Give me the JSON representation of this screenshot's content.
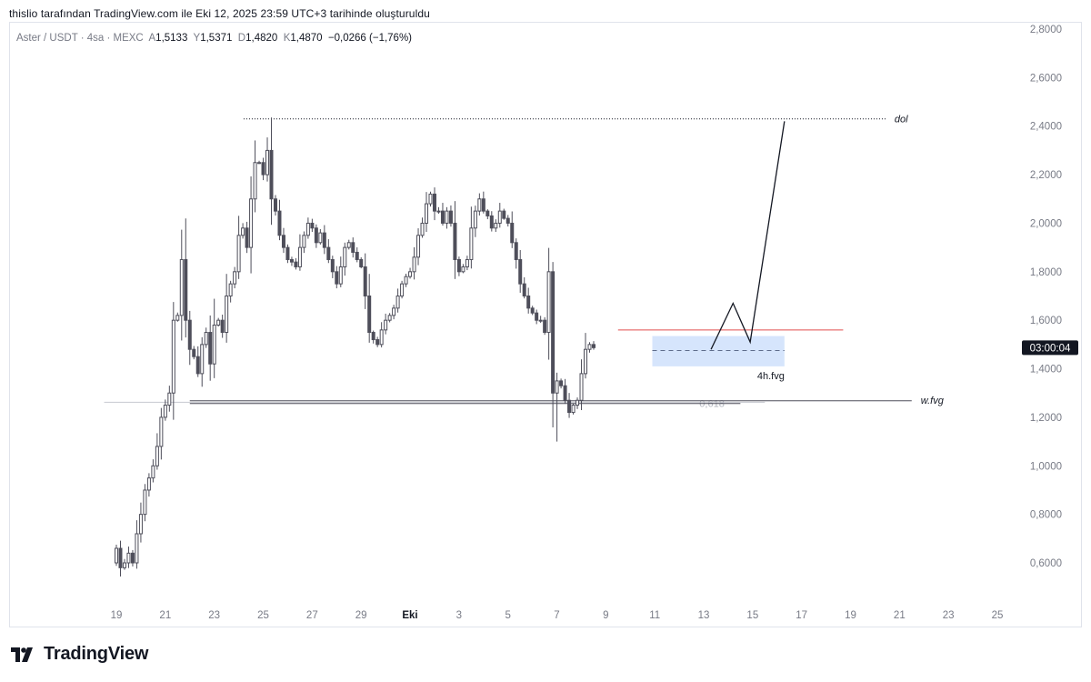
{
  "header": {
    "text": "thislio tarafından TradingView.com ile Eki 12, 2025 23:59 UTC+3 tarihinde oluşturuldu"
  },
  "legend": {
    "symbol": "Aster / USDT · 4sa · MEXC",
    "o_label": "A",
    "o_value": "1,5133",
    "h_label": "Y",
    "h_value": "1,5371",
    "l_label": "D",
    "l_value": "1,4820",
    "c_label": "K",
    "c_value": "1,4870",
    "change": "−0,0266 (−1,76%)"
  },
  "footer": {
    "brand": "TradingView"
  },
  "chart_data": {
    "type": "candlestick",
    "instrument": "Aster / USDT",
    "interval": "4sa",
    "exchange": "MEXC",
    "ylim": [
      0.47,
      2.8
    ],
    "y_ticks": [
      2.8,
      2.6,
      2.4,
      2.2,
      2.0,
      1.8,
      1.6,
      1.4,
      1.2,
      1.0,
      0.8,
      0.6
    ],
    "y_tick_labels": [
      "2,8000",
      "2,6000",
      "2,4000",
      "2,2000",
      "2,0000",
      "1,8000",
      "1,6000",
      "1,4000",
      "1,2000",
      "1,0000",
      "0,8000",
      "0,6000"
    ],
    "x_day_range": [
      18.2,
      25.8
    ],
    "x_ticks": [
      {
        "day": 19,
        "label": "19"
      },
      {
        "day": 21,
        "label": "21"
      },
      {
        "day": 23,
        "label": "23"
      },
      {
        "day": 25,
        "label": "25"
      },
      {
        "day": 27,
        "label": "27"
      },
      {
        "day": 29,
        "label": "29"
      },
      {
        "day": 31,
        "label": "Eki",
        "bold": true
      },
      {
        "day": 33,
        "label": "3"
      },
      {
        "day": 35,
        "label": "5"
      },
      {
        "day": 37,
        "label": "7"
      },
      {
        "day": 39,
        "label": "9"
      },
      {
        "day": 41,
        "label": "11"
      },
      {
        "day": 43,
        "label": "13"
      },
      {
        "day": 45,
        "label": "15"
      },
      {
        "day": 47,
        "label": "17"
      },
      {
        "day": 49,
        "label": "19"
      },
      {
        "day": 51,
        "label": "21"
      },
      {
        "day": 53,
        "label": "23"
      },
      {
        "day": 55,
        "label": "25"
      }
    ],
    "price_label": "03:00:04",
    "price_label_value": 1.487,
    "candle_start_day": 19.0,
    "candle_step_days": 0.1667,
    "candle_start_price": 0.6,
    "closes": [
      0.66,
      0.58,
      0.6,
      0.64,
      0.6,
      0.72,
      0.8,
      0.9,
      0.95,
      1.0,
      1.08,
      1.2,
      1.25,
      1.3,
      1.6,
      1.62,
      1.85,
      1.6,
      1.48,
      1.45,
      1.38,
      1.5,
      1.55,
      1.42,
      1.58,
      1.6,
      1.55,
      1.7,
      1.75,
      1.8,
      1.95,
      1.98,
      1.9,
      2.1,
      2.25,
      2.25,
      2.2,
      2.3,
      2.1,
      2.05,
      1.95,
      1.9,
      1.85,
      1.84,
      1.82,
      1.9,
      1.95,
      2.0,
      1.98,
      1.92,
      1.96,
      1.9,
      1.85,
      1.8,
      1.75,
      1.82,
      1.9,
      1.92,
      1.88,
      1.85,
      1.82,
      1.7,
      1.55,
      1.52,
      1.5,
      1.56,
      1.6,
      1.62,
      1.65,
      1.7,
      1.75,
      1.78,
      1.8,
      1.86,
      1.95,
      2.0,
      2.08,
      2.12,
      2.05,
      2.05,
      2.0,
      2.05,
      2.0,
      1.85,
      1.8,
      1.82,
      1.85,
      1.98,
      2.05,
      2.1,
      2.05,
      2.03,
      1.98,
      2.0,
      2.05,
      2.02,
      2.0,
      1.92,
      1.85,
      1.75,
      1.7,
      1.65,
      1.63,
      1.6,
      1.6,
      1.55,
      1.8,
      1.3,
      1.35,
      1.33,
      1.27,
      1.22,
      1.25,
      1.27,
      1.38,
      1.48,
      1.5,
      1.487
    ],
    "annotations": {
      "dol_label": "dol",
      "dol_price": 2.43,
      "dol_from_day": 24.2,
      "dol_to_day": 50.5,
      "wfvg_label": "w.fvg",
      "wfvg_price": 1.268,
      "wfvg_from_day": 22.0,
      "wfvg_to_day": 51.5,
      "fib_label": "0,618",
      "fib_price": 1.262,
      "fib_from_day": 18.5,
      "fib_to_day": 45.5,
      "fvg4h_label": "4h.fvg",
      "fvg4h_top": 1.535,
      "fvg4h_bottom": 1.41,
      "fvg4h_mid": 1.475,
      "fvg4h_from_day": 40.9,
      "fvg4h_to_day": 46.3,
      "red_level_price": 1.56,
      "red_level_from_day": 39.5,
      "red_level_to_day": 48.7,
      "projection": [
        {
          "day": 43.3,
          "price": 1.48
        },
        {
          "day": 44.2,
          "price": 1.67
        },
        {
          "day": 44.9,
          "price": 1.51
        },
        {
          "day": 46.3,
          "price": 2.42
        }
      ]
    },
    "colors": {
      "up_body": "#ffffff",
      "up_border": "#4e4e5a",
      "down_body": "#4e4e5a",
      "wick": "#4e4e5a",
      "fvg_fill": "#cfe0fc",
      "red_level": "#e04e4e",
      "label_bg": "#131722"
    }
  }
}
